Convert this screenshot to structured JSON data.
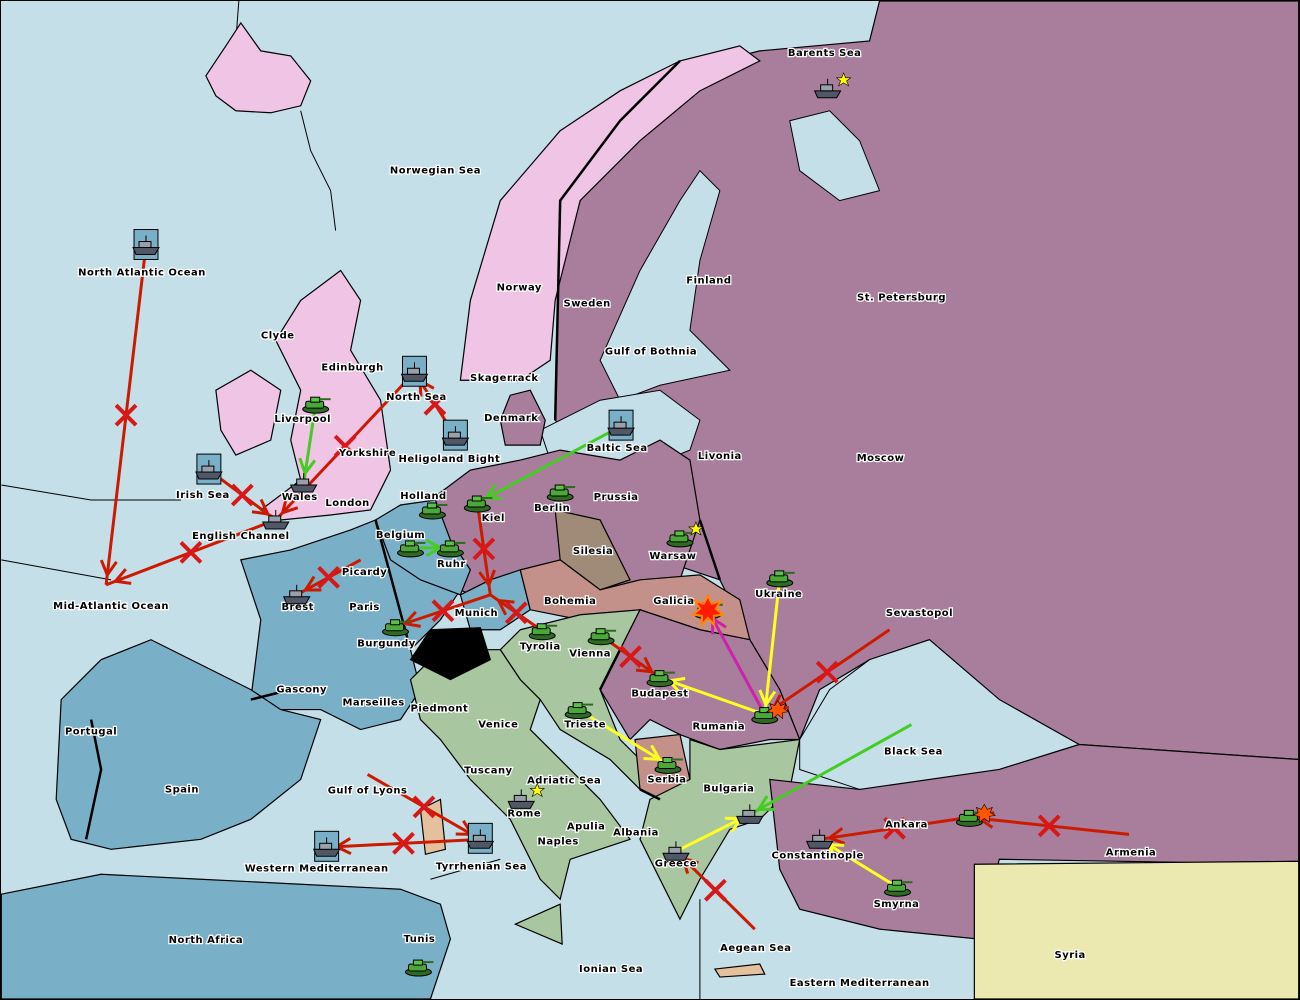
{
  "map": {
    "colors": {
      "sea": "#c5dfe9",
      "england": "#f0c4e4",
      "russia_turkey_germany": "#a87e9c",
      "france": "#7aafc8",
      "italy_austria": "#a8c6a0",
      "contested": "#c4908a",
      "silesia": "#a08a78",
      "neutral": "#ebe8b0",
      "switzerland": "#000000",
      "move_failed": "#cc1a00",
      "support": "#ffff22",
      "convoy_support": "#44cc22",
      "move_success": "#cc22aa"
    },
    "labels": [
      "Barents Sea",
      "Norwegian Sea",
      "North Atlantic Ocean",
      "Norway",
      "Sweden",
      "Finland",
      "St. Petersburg",
      "Gulf of Bothnia",
      "Clyde",
      "Edinburgh",
      "Skagerrack",
      "North Sea",
      "Denmark",
      "Liverpool",
      "Livonia",
      "Moscow",
      "Baltic Sea",
      "Yorkshire",
      "Heligoland Bight",
      "Irish Sea",
      "Wales",
      "London",
      "Holland",
      "Prussia",
      "Berlin",
      "Kiel",
      "English Channel",
      "Belgium",
      "Silesia",
      "Warsaw",
      "Ruhr",
      "Picardy",
      "Ukraine",
      "Paris",
      "Brest",
      "Mid-Atlantic Ocean",
      "Munich",
      "Bohemia",
      "Galicia",
      "Sevastopol",
      "Burgundy",
      "Tyrolia",
      "Vienna",
      "Gascony",
      "Budapest",
      "Marseilles",
      "Piedmont",
      "Venice",
      "Trieste",
      "Rumania",
      "Portugal",
      "Black Sea",
      "Tuscany",
      "Adriatic Sea",
      "Serbia",
      "Spain",
      "Gulf of Lyons",
      "Bulgaria",
      "Rome",
      "Apulia",
      "Albania",
      "Ankara",
      "Naples",
      "Constantinople",
      "Armenia",
      "Western Mediterranean",
      "Tyrrhenian Sea",
      "Greece",
      "Smyrna",
      "North Africa",
      "Tunis",
      "Aegean Sea",
      "Syria",
      "Ionian Sea",
      "Eastern Mediterranean"
    ],
    "units": [
      {
        "province": "Barents Sea",
        "type": "fleet",
        "star": true
      },
      {
        "province": "North Atlantic Ocean",
        "type": "fleet",
        "dislodged": true
      },
      {
        "province": "North Sea",
        "type": "fleet",
        "dislodged": true
      },
      {
        "province": "Heligoland Bight",
        "type": "fleet",
        "dislodged": true
      },
      {
        "province": "Irish Sea",
        "type": "fleet",
        "dislodged": true
      },
      {
        "province": "Baltic Sea",
        "type": "fleet",
        "dislodged": true
      },
      {
        "province": "Tyrrhenian Sea",
        "type": "fleet",
        "dislodged": true
      },
      {
        "province": "Western Mediterranean",
        "type": "fleet",
        "dislodged": true
      },
      {
        "province": "Wales",
        "type": "fleet"
      },
      {
        "province": "English Channel",
        "type": "fleet"
      },
      {
        "province": "Brest",
        "type": "fleet"
      },
      {
        "province": "Rome",
        "type": "fleet",
        "star": true
      },
      {
        "province": "Greece",
        "type": "fleet"
      },
      {
        "province": "Bulgaria",
        "type": "fleet"
      },
      {
        "province": "Constantinople",
        "type": "fleet"
      },
      {
        "province": "Liverpool",
        "type": "army"
      },
      {
        "province": "Kiel",
        "type": "army"
      },
      {
        "province": "Berlin",
        "type": "army"
      },
      {
        "province": "Holland",
        "type": "army"
      },
      {
        "province": "Belgium",
        "type": "army"
      },
      {
        "province": "Ruhr",
        "type": "army"
      },
      {
        "province": "Warsaw",
        "type": "army",
        "star": true
      },
      {
        "province": "Ukraine",
        "type": "army"
      },
      {
        "province": "Burgundy",
        "type": "army"
      },
      {
        "province": "Tyrolia",
        "type": "army"
      },
      {
        "province": "Vienna",
        "type": "army"
      },
      {
        "province": "Budapest",
        "type": "army"
      },
      {
        "province": "Trieste",
        "type": "army"
      },
      {
        "province": "Rumania",
        "type": "army"
      },
      {
        "province": "Serbia",
        "type": "army"
      },
      {
        "province": "Ankara",
        "type": "army"
      },
      {
        "province": "Smyrna",
        "type": "army"
      },
      {
        "province": "Tunis",
        "type": "army"
      },
      {
        "province": "Galicia",
        "type": "army",
        "bounce": true
      }
    ],
    "orders": [
      {
        "from": "North Atlantic Ocean",
        "to": "Mid-Atlantic Ocean",
        "kind": "move_failed"
      },
      {
        "from": "English Channel",
        "to": "Mid-Atlantic Ocean",
        "kind": "move_failed"
      },
      {
        "from": "North Sea",
        "to": "English Channel",
        "kind": "move_failed"
      },
      {
        "from": "Heligoland Bight",
        "to": "North Sea",
        "kind": "move_failed"
      },
      {
        "from": "Irish Sea",
        "to": "English Channel",
        "kind": "move_failed"
      },
      {
        "from": "Picardy",
        "to": "Brest",
        "kind": "move_failed"
      },
      {
        "from": "Baltic Sea",
        "to": "Kiel",
        "kind": "convoy_support"
      },
      {
        "from": "Liverpool",
        "to": "Wales",
        "kind": "convoy_support"
      },
      {
        "from": "Belgium",
        "to": "Ruhr",
        "kind": "convoy_support"
      },
      {
        "from": "Kiel",
        "to": "Munich",
        "kind": "move_failed"
      },
      {
        "from": "Munich",
        "to": "Burgundy",
        "kind": "move_failed"
      },
      {
        "from": "Tyrolia",
        "to": "Munich",
        "kind": "move_failed"
      },
      {
        "from": "Vienna",
        "to": "Budapest",
        "kind": "move_failed"
      },
      {
        "from": "Rumania",
        "to": "Galicia",
        "kind": "move_success"
      },
      {
        "from": "Ukraine",
        "to": "Rumania",
        "kind": "support"
      },
      {
        "from": "Sevastopol",
        "to": "Rumania",
        "kind": "move_failed"
      },
      {
        "from": "Trieste",
        "to": "Serbia",
        "kind": "support"
      },
      {
        "from": "Rumania",
        "to": "Budapest",
        "kind": "support"
      },
      {
        "from": "Black Sea",
        "to": "Bulgaria",
        "kind": "convoy_support"
      },
      {
        "from": "Armenia",
        "to": "Ankara",
        "kind": "move_failed"
      },
      {
        "from": "Ankara",
        "to": "Constantinople",
        "kind": "move_failed"
      },
      {
        "from": "Smyrna",
        "to": "Constantinople",
        "kind": "support"
      },
      {
        "from": "Greece",
        "to": "Bulgaria",
        "kind": "support"
      },
      {
        "from": "Aegean Sea",
        "to": "Greece",
        "kind": "move_failed"
      },
      {
        "from": "Tyrrhenian Sea",
        "to": "Western Mediterranean",
        "kind": "move_failed"
      },
      {
        "from": "Gulf of Lyons",
        "to": "Tyrrhenian Sea",
        "kind": "move_failed"
      }
    ]
  }
}
